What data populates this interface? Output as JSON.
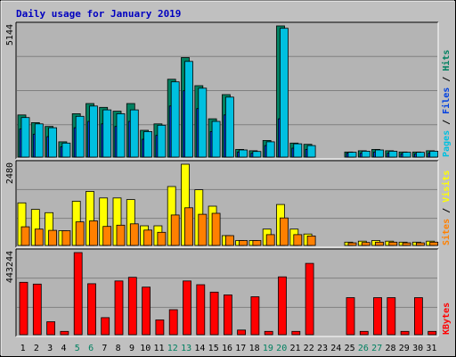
{
  "chart_data": [
    {
      "type": "bar",
      "title": "Daily usage for January 2019",
      "panel": "pages-files-hits",
      "ymax_label": "5144",
      "ylim": [
        0,
        5144
      ],
      "right_labels": [
        {
          "text": "Pages",
          "color": "#00c0e0"
        },
        {
          "text": " / ",
          "color": "#000000"
        },
        {
          "text": "Files",
          "color": "#0040e0"
        },
        {
          "text": " / ",
          "color": "#000000"
        },
        {
          "text": "Hits",
          "color": "#008060"
        }
      ],
      "categories": [
        "1",
        "2",
        "3",
        "4",
        "5",
        "6",
        "7",
        "8",
        "9",
        "10",
        "11",
        "12",
        "13",
        "14",
        "15",
        "16",
        "17",
        "18",
        "19",
        "20",
        "21",
        "22",
        "23",
        "24",
        "25",
        "26",
        "27",
        "28",
        "29",
        "30",
        "31"
      ],
      "series": [
        {
          "name": "Hits",
          "color": "#008060",
          "values": [
            1650,
            1350,
            1200,
            600,
            1700,
            2100,
            1950,
            1800,
            2100,
            1050,
            1300,
            3050,
            3900,
            2800,
            1500,
            2450,
            300,
            250,
            650,
            5144,
            550,
            500,
            0,
            0,
            200,
            250,
            300,
            250,
            200,
            200,
            250
          ]
        },
        {
          "name": "Files",
          "color": "#0040e0",
          "values": [
            1100,
            900,
            800,
            400,
            1150,
            1400,
            1300,
            1200,
            1400,
            700,
            850,
            2000,
            2600,
            1900,
            1000,
            1650,
            200,
            150,
            450,
            1500,
            350,
            300,
            0,
            0,
            150,
            150,
            200,
            150,
            130,
            130,
            150
          ]
        },
        {
          "name": "Pages",
          "color": "#00c0e0",
          "values": [
            1550,
            1300,
            1150,
            550,
            1600,
            2000,
            1850,
            1700,
            1850,
            1000,
            1250,
            2950,
            3750,
            2700,
            1400,
            2350,
            280,
            220,
            600,
            5050,
            520,
            450,
            0,
            0,
            190,
            230,
            280,
            230,
            190,
            190,
            230
          ]
        }
      ]
    },
    {
      "type": "bar",
      "panel": "visits-sites",
      "ymax_label": "2480",
      "ylim": [
        0,
        2480
      ],
      "right_labels": [
        {
          "text": "Sites",
          "color": "#ff8000"
        },
        {
          "text": " / ",
          "color": "#000000"
        },
        {
          "text": "Visits",
          "color": "#ffff00"
        }
      ],
      "categories": [
        "1",
        "2",
        "3",
        "4",
        "5",
        "6",
        "7",
        "8",
        "9",
        "10",
        "11",
        "12",
        "13",
        "14",
        "15",
        "16",
        "17",
        "18",
        "19",
        "20",
        "21",
        "22",
        "23",
        "24",
        "25",
        "26",
        "27",
        "28",
        "29",
        "30",
        "31"
      ],
      "series": [
        {
          "name": "Visits",
          "color": "#ffff00",
          "values": [
            1300,
            1100,
            1000,
            450,
            1350,
            1650,
            1450,
            1450,
            1400,
            600,
            600,
            1800,
            2480,
            1700,
            1200,
            300,
            150,
            150,
            500,
            1250,
            500,
            350,
            0,
            0,
            100,
            130,
            150,
            130,
            100,
            100,
            130
          ]
        },
        {
          "name": "Sites",
          "color": "#ff8000",
          "values": [
            570,
            500,
            460,
            450,
            720,
            750,
            580,
            620,
            660,
            470,
            400,
            930,
            1150,
            950,
            980,
            300,
            150,
            150,
            330,
            840,
            330,
            290,
            0,
            0,
            80,
            90,
            100,
            100,
            80,
            80,
            100
          ]
        }
      ]
    },
    {
      "type": "bar",
      "panel": "kbytes",
      "ymax_label": "443244",
      "ylim": [
        0,
        443244
      ],
      "right_labels": [
        {
          "text": "KBytes",
          "color": "#ff0000"
        }
      ],
      "categories": [
        "1",
        "2",
        "3",
        "4",
        "5",
        "6",
        "7",
        "8",
        "9",
        "10",
        "11",
        "12",
        "13",
        "14",
        "15",
        "16",
        "17",
        "18",
        "19",
        "20",
        "21",
        "22",
        "23",
        "24",
        "25",
        "26",
        "27",
        "28",
        "29",
        "30",
        "31"
      ],
      "series": [
        {
          "name": "KBytes",
          "color": "#ff0000",
          "values": [
            283000,
            273000,
            70000,
            18000,
            443244,
            275000,
            92000,
            290000,
            310000,
            257000,
            80000,
            135000,
            290000,
            270000,
            230000,
            215000,
            25000,
            205000,
            18000,
            312000,
            18000,
            385000,
            0,
            0,
            200000,
            18000,
            200000,
            200000,
            18000,
            200000,
            18000
          ]
        }
      ]
    }
  ],
  "x_labels": [
    {
      "text": "1",
      "weekend": false
    },
    {
      "text": "2",
      "weekend": false
    },
    {
      "text": "3",
      "weekend": false
    },
    {
      "text": "4",
      "weekend": false
    },
    {
      "text": "5",
      "weekend": true
    },
    {
      "text": "6",
      "weekend": true
    },
    {
      "text": "7",
      "weekend": false
    },
    {
      "text": "8",
      "weekend": false
    },
    {
      "text": "9",
      "weekend": false
    },
    {
      "text": "10",
      "weekend": false
    },
    {
      "text": "11",
      "weekend": false
    },
    {
      "text": "12",
      "weekend": true
    },
    {
      "text": "13",
      "weekend": true
    },
    {
      "text": "14",
      "weekend": false
    },
    {
      "text": "15",
      "weekend": false
    },
    {
      "text": "16",
      "weekend": false
    },
    {
      "text": "17",
      "weekend": false
    },
    {
      "text": "18",
      "weekend": false
    },
    {
      "text": "19",
      "weekend": true
    },
    {
      "text": "20",
      "weekend": true
    },
    {
      "text": "21",
      "weekend": false
    },
    {
      "text": "22",
      "weekend": false
    },
    {
      "text": "23",
      "weekend": false
    },
    {
      "text": "24",
      "weekend": false
    },
    {
      "text": "25",
      "weekend": false
    },
    {
      "text": "26",
      "weekend": true
    },
    {
      "text": "27",
      "weekend": true
    },
    {
      "text": "28",
      "weekend": false
    },
    {
      "text": "29",
      "weekend": false
    },
    {
      "text": "30",
      "weekend": false
    },
    {
      "text": "31",
      "weekend": false
    }
  ],
  "colors": {
    "frame": "#c0c0c0",
    "plot_bg": "#b4b4b4",
    "grid": "#808080",
    "title": "#0000c0",
    "weekday_label": "#000000",
    "weekend_label": "#008060"
  }
}
